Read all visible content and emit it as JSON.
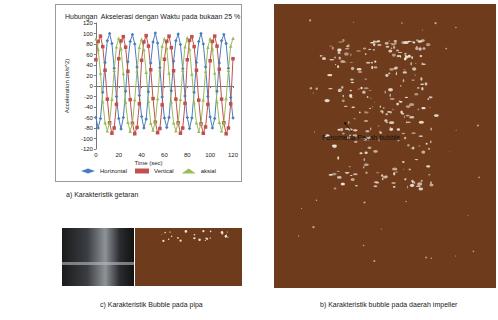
{
  "chart_data": {
    "type": "line",
    "title": "Hubungan  Akselerasi dengan Waktu pada bukaan 25 %",
    "xlabel": "Time (sec)",
    "ylabel": "Acceleration (m/s^2)",
    "x": [
      0,
      2,
      4,
      6,
      8,
      10,
      12,
      14,
      16,
      18,
      20,
      22,
      24,
      26,
      28,
      30,
      32,
      34,
      36,
      38,
      40,
      42,
      44,
      46,
      48,
      50,
      52,
      54,
      56,
      58,
      60,
      62,
      64,
      66,
      68,
      70,
      72,
      74,
      76,
      78,
      80,
      82,
      84,
      86,
      88,
      90,
      92,
      94,
      96,
      98,
      100,
      102,
      104,
      106,
      108,
      110,
      112,
      114,
      116,
      118,
      120
    ],
    "series": [
      {
        "name": "Horizontal",
        "color": "#4a7ebb",
        "marker": "diamond",
        "values": [
          -60,
          -80,
          -62,
          -12,
          45,
          86,
          100,
          81,
          34,
          -20,
          -62,
          -82,
          -60,
          -10,
          46,
          85,
          98,
          80,
          36,
          -18,
          -58,
          -80,
          -63,
          -11,
          44,
          84,
          101,
          82,
          35,
          -21,
          -61,
          -79,
          -60,
          -9,
          47,
          86,
          99,
          79,
          33,
          -19,
          -60,
          -81,
          -61,
          -12,
          45,
          85,
          100,
          80,
          36,
          -20,
          -59,
          -80,
          -62,
          -10,
          44,
          86,
          98,
          81,
          34,
          -22,
          -61
        ]
      },
      {
        "name": "Vertical",
        "color": "#c0504d",
        "marker": "square",
        "values": [
          50,
          85,
          95,
          75,
          30,
          -25,
          -70,
          -90,
          -80,
          -35,
          52,
          86,
          94,
          74,
          28,
          -26,
          -71,
          -91,
          -79,
          -34,
          49,
          84,
          96,
          76,
          31,
          -24,
          -69,
          -89,
          -81,
          -36,
          51,
          85,
          95,
          73,
          29,
          -25,
          -70,
          -90,
          -80,
          -33,
          50,
          87,
          94,
          75,
          30,
          -27,
          -72,
          -90,
          -78,
          -35,
          48,
          85,
          95,
          76,
          32,
          -25,
          -70,
          -91,
          -80,
          -34,
          52
        ]
      },
      {
        "name": "aksial",
        "color": "#9bbb59",
        "marker": "triangle",
        "values": [
          90,
          70,
          25,
          -30,
          -70,
          -85,
          -70,
          -25,
          30,
          75,
          91,
          71,
          24,
          -31,
          -69,
          -86,
          -71,
          -26,
          29,
          74,
          89,
          69,
          26,
          -29,
          -71,
          -84,
          -69,
          -24,
          31,
          76,
          90,
          72,
          25,
          -30,
          -70,
          -85,
          -70,
          -25,
          30,
          75,
          92,
          70,
          23,
          -32,
          -70,
          -86,
          -72,
          -26,
          28,
          74,
          90,
          71,
          25,
          -30,
          -69,
          -85,
          -70,
          -24,
          30,
          76,
          91
        ]
      }
    ],
    "xlim": [
      0,
      120
    ],
    "xticks": [
      0,
      20,
      40,
      60,
      80,
      100,
      120
    ],
    "ylim": [
      -120,
      120
    ],
    "yticks": [
      -120,
      -100,
      -80,
      -60,
      -40,
      -20,
      0,
      20,
      40,
      60,
      80,
      100,
      120
    ],
    "grid": false,
    "legend": "bottom"
  },
  "captions": {
    "a": "a)  Karakteristik getaran",
    "b": "b) Karakteristik bubble pada daerah impeller",
    "c": "c)  Karakteristik Bubble pada pipa"
  },
  "annotation": "Fenomena Pecah bubble"
}
